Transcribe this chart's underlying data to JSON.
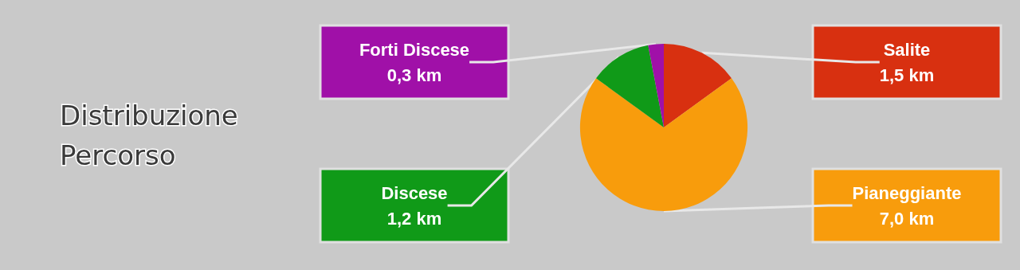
{
  "chart_data": {
    "type": "pie",
    "title": "Distribuzione Percorso",
    "categories": [
      "Salite",
      "Pianeggiante",
      "Discese",
      "Forti Discese"
    ],
    "values": [
      1.5,
      7.0,
      1.2,
      0.3
    ],
    "colors": [
      "#d83010",
      "#f89c0c",
      "#109a18",
      "#a010a8"
    ],
    "value_labels": [
      "1,5 km",
      "7,0 km",
      "1,2 km",
      "0,3 km"
    ]
  }
}
